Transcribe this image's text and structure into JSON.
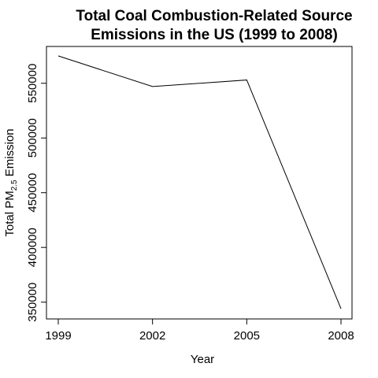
{
  "chart_data": {
    "type": "line",
    "title_line1": "Total Coal Combustion-Related Source",
    "title_line2": "Emissions in the US (1999 to 2008)",
    "xlabel": "Year",
    "ylabel": {
      "prefix": "Total PM",
      "subscript": "2.5",
      "suffix": " Emission"
    },
    "x": [
      1999,
      2002,
      2005,
      2008
    ],
    "x_tick_labels": [
      "1999",
      "2002",
      "2005",
      "2008"
    ],
    "y_ticks": [
      350000,
      400000,
      450000,
      500000,
      550000
    ],
    "y_tick_labels": [
      "350000",
      "400000",
      "450000",
      "500000",
      "550000"
    ],
    "series": [
      {
        "values": [
          575000,
          547000,
          553000,
          344000
        ]
      }
    ],
    "xlim": [
      1999,
      2008
    ],
    "ylim": [
      344000,
      575000
    ],
    "grid": false,
    "line_color": "#000000"
  }
}
